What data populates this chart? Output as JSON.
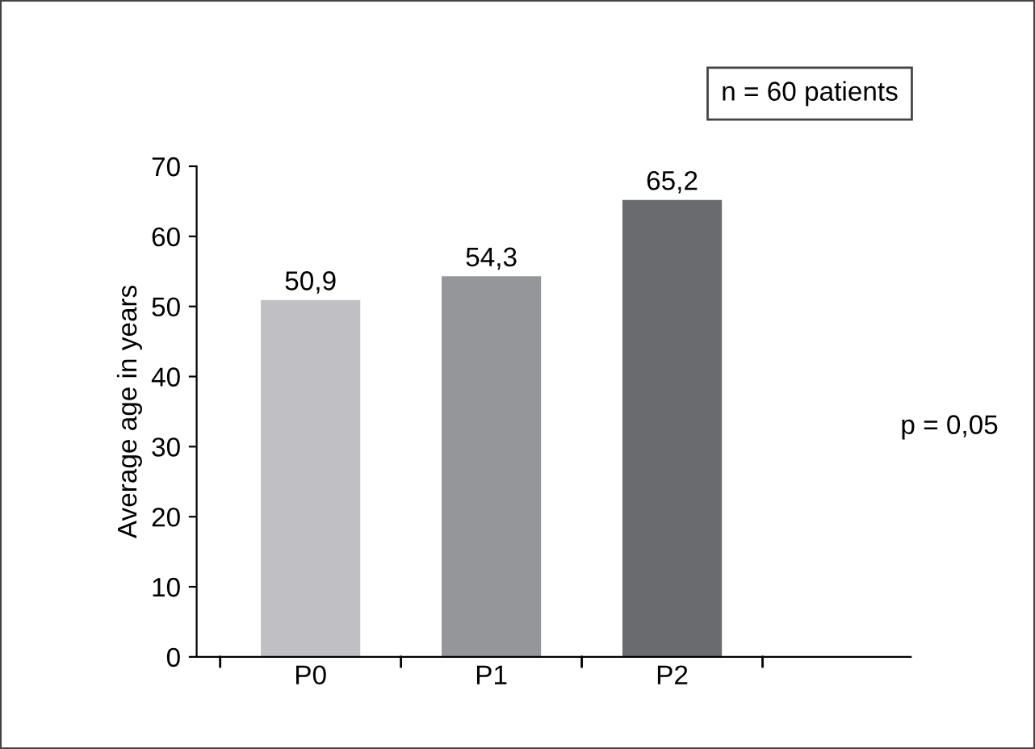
{
  "chart_data": {
    "type": "bar",
    "ylabel": "Average age in years",
    "categories": [
      "P0",
      "P1",
      "P2"
    ],
    "values": [
      50.9,
      54.3,
      65.2
    ],
    "colors": [
      "#c0c0c4",
      "#949699",
      "#6a6b6e"
    ],
    "value_labels": [
      "50,9",
      "54,3",
      "65,2"
    ],
    "ylim": [
      0,
      70
    ],
    "yticks": [
      0,
      10,
      20,
      30,
      40,
      50,
      60,
      70
    ],
    "grid": false,
    "legend": false,
    "annotations": [
      "n = 60 patients",
      "p = 0,05"
    ]
  }
}
